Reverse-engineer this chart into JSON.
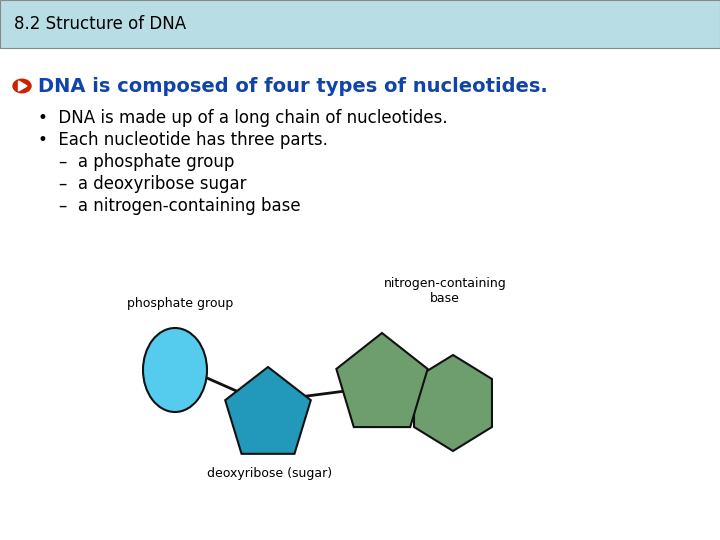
{
  "title_box_text": "8.2 Structure of DNA",
  "title_box_bg": "#b8dde4",
  "title_text_color": "#000000",
  "title_fontsize": 12,
  "bg_color": "#ffffff",
  "bullet_icon_color": "#cc2200",
  "bullet_text_color": "#1144aa",
  "bullet_text": "DNA is composed of four types of nucleotides.",
  "bullet_fontsize": 14,
  "body_text_color": "#000000",
  "body_fontsize": 12,
  "body_lines": [
    "•  DNA is made up of a long chain of nucleotides.",
    "•  Each nucleotide has three parts.",
    "    –  a phosphate group",
    "    –  a deoxyribose sugar",
    "    –  a nitrogen-containing base"
  ],
  "diagram_label_phosphate": "phosphate group",
  "diagram_label_nitrogen": "nitrogen-containing\nbase",
  "diagram_label_deoxyribose": "deoxyribose (sugar)",
  "diagram_label_fontsize": 9,
  "phosphate_color": "#55ccee",
  "sugar_color": "#2299bb",
  "base_color": "#6e9e6e",
  "shape_edge_color": "#111111"
}
